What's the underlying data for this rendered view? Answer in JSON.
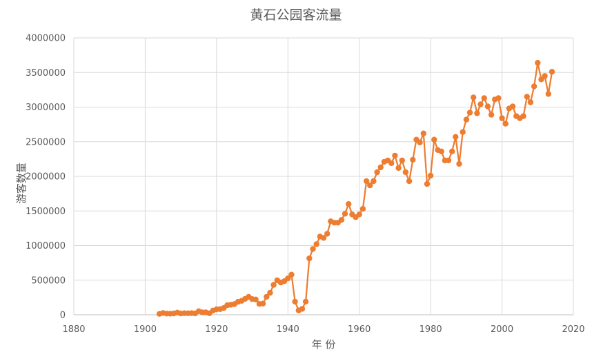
{
  "chart_data": {
    "type": "line",
    "title": "黄石公园客流量",
    "xlabel": "年 份",
    "ylabel": "游客数量",
    "xlim": [
      1880,
      2020
    ],
    "ylim": [
      0,
      4000000
    ],
    "x_ticks": [
      "1880",
      "1900",
      "1920",
      "1940",
      "1960",
      "1980",
      "2000",
      "2020"
    ],
    "y_ticks": [
      "0",
      "500000",
      "1000000",
      "1500000",
      "2000000",
      "2500000",
      "3000000",
      "3500000",
      "4000000"
    ],
    "grid": true,
    "series_color": "#ED7D31",
    "series": [
      {
        "x": [
          1904,
          1905,
          1906,
          1907,
          1908,
          1909,
          1910,
          1911,
          1912,
          1913,
          1914,
          1915,
          1916,
          1917,
          1918,
          1919,
          1920,
          1921,
          1922,
          1923,
          1924,
          1925,
          1926,
          1927,
          1928,
          1929,
          1930,
          1931,
          1932,
          1933,
          1934,
          1935,
          1936,
          1937,
          1938,
          1939,
          1940,
          1941,
          1942,
          1943,
          1944,
          1945,
          1946,
          1947,
          1948,
          1949,
          1950,
          1951,
          1952,
          1953,
          1954,
          1955,
          1956,
          1957,
          1958,
          1959,
          1960,
          1961,
          1962,
          1963,
          1964,
          1965,
          1966,
          1967,
          1968,
          1969,
          1970,
          1971,
          1972,
          1973,
          1974,
          1975,
          1976,
          1977,
          1978,
          1979,
          1980,
          1981,
          1982,
          1983,
          1984,
          1985,
          1986,
          1987,
          1988,
          1989,
          1990,
          1991,
          1992,
          1993,
          1994,
          1995,
          1996,
          1997,
          1998,
          1999,
          2000,
          2001,
          2002,
          2003,
          2004,
          2005,
          2006,
          2007,
          2008,
          2009,
          2010,
          2011,
          2012,
          2013,
          2014
        ],
        "y": [
          13000,
          26000,
          17000,
          16000,
          19000,
          32000,
          19000,
          23000,
          22000,
          24000,
          20000,
          52000,
          36000,
          35000,
          22000,
          62000,
          80000,
          82000,
          98000,
          138000,
          145000,
          154000,
          187000,
          201000,
          230000,
          260000,
          227000,
          221000,
          157000,
          162000,
          260000,
          317000,
          432000,
          499000,
          467000,
          486000,
          526000,
          580000,
          190000,
          64000,
          86000,
          190000,
          815000,
          950000,
          1020000,
          1130000,
          1110000,
          1170000,
          1350000,
          1330000,
          1330000,
          1370000,
          1460000,
          1600000,
          1450000,
          1410000,
          1450000,
          1530000,
          1930000,
          1870000,
          1930000,
          2060000,
          2130000,
          2210000,
          2230000,
          2190000,
          2300000,
          2120000,
          2230000,
          2060000,
          1930000,
          2240000,
          2530000,
          2490000,
          2620000,
          1890000,
          2010000,
          2530000,
          2380000,
          2360000,
          2230000,
          2230000,
          2360000,
          2570000,
          2180000,
          2640000,
          2820000,
          2920000,
          3140000,
          2910000,
          3040000,
          3130000,
          3010000,
          2890000,
          3110000,
          3130000,
          2840000,
          2760000,
          2980000,
          3010000,
          2870000,
          2840000,
          2870000,
          3150000,
          3070000,
          3300000,
          3640000,
          3400000,
          3450000,
          3190000,
          3510000
        ]
      }
    ]
  }
}
